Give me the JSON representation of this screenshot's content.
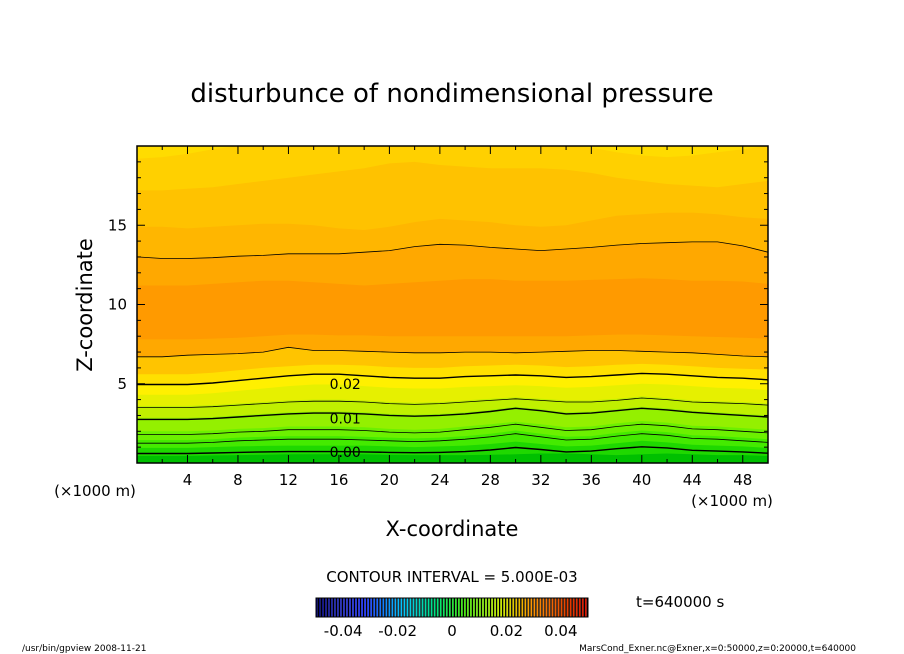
{
  "chart_data": {
    "type": "contour",
    "title": "disturbunce of nondimensional pressure",
    "xlabel": "X-coordinate",
    "ylabel": "Z-coordinate",
    "x_unit": "(×1000 m)",
    "y_unit": "(×1000 m)",
    "xlim": [
      0,
      50
    ],
    "ylim": [
      0,
      20
    ],
    "xticks": [
      4,
      8,
      12,
      16,
      20,
      24,
      28,
      32,
      36,
      40,
      44,
      48
    ],
    "yticks": [
      5,
      10,
      15
    ],
    "contour_interval_label": "CONTOUR INTERVAL = 5.000E-03",
    "contour_labels": [
      {
        "text": "0.02",
        "x": 16.5,
        "z": 5.0
      },
      {
        "text": "0.01",
        "x": 16.5,
        "z": 2.8
      },
      {
        "text": "0.00",
        "x": 16.5,
        "z": 0.7
      }
    ],
    "colorbar": {
      "range": [
        -0.05,
        0.05
      ],
      "ticks": [
        -0.04,
        -0.02,
        0,
        0.02,
        0.04
      ],
      "tick_labels": [
        "-0.04",
        "-0.02",
        "0",
        "0.02",
        "0.04"
      ]
    },
    "time_label": "t=640000  s",
    "bands": [
      {
        "color": "#00c000",
        "lower": [
          0,
          0,
          0,
          0,
          0,
          0,
          0,
          0,
          0,
          0,
          0,
          0,
          0,
          0,
          0,
          0,
          0,
          0,
          0,
          0,
          0,
          0,
          0,
          0,
          0,
          0
        ]
      },
      {
        "color": "#1fd800",
        "lower": [
          0.45,
          0.45,
          0.45,
          0.48,
          0.5,
          0.52,
          0.55,
          0.55,
          0.55,
          0.55,
          0.52,
          0.5,
          0.5,
          0.5,
          0.52,
          0.55,
          0.6,
          0.6,
          0.55,
          0.5,
          0.55,
          0.6,
          0.55,
          0.5,
          0.5,
          0.45
        ]
      },
      {
        "color": "#44ea00",
        "lower": [
          0.95,
          0.95,
          0.95,
          1.0,
          1.05,
          1.08,
          1.1,
          1.1,
          1.1,
          1.1,
          1.05,
          1.0,
          1.05,
          1.1,
          1.2,
          1.35,
          1.2,
          1.05,
          1.1,
          1.25,
          1.4,
          1.3,
          1.15,
          1.1,
          1.05,
          0.95
        ]
      },
      {
        "color": "#6cf000",
        "lower": [
          1.45,
          1.45,
          1.45,
          1.5,
          1.6,
          1.65,
          1.7,
          1.7,
          1.7,
          1.65,
          1.6,
          1.55,
          1.6,
          1.7,
          1.85,
          2.05,
          1.85,
          1.65,
          1.7,
          1.9,
          2.05,
          1.95,
          1.75,
          1.7,
          1.6,
          1.5
        ]
      },
      {
        "color": "#94f000",
        "lower": [
          2.0,
          2.0,
          2.0,
          2.05,
          2.15,
          2.2,
          2.3,
          2.3,
          2.3,
          2.25,
          2.15,
          2.1,
          2.15,
          2.3,
          2.45,
          2.6,
          2.45,
          2.25,
          2.3,
          2.5,
          2.65,
          2.55,
          2.35,
          2.3,
          2.2,
          2.1
        ]
      },
      {
        "color": "#c0f000",
        "lower": [
          2.85,
          2.85,
          2.85,
          2.9,
          3.0,
          3.1,
          3.2,
          3.25,
          3.25,
          3.2,
          3.1,
          3.05,
          3.1,
          3.2,
          3.35,
          3.55,
          3.4,
          3.2,
          3.25,
          3.4,
          3.55,
          3.45,
          3.3,
          3.2,
          3.1,
          3.0
        ]
      },
      {
        "color": "#e6f000",
        "lower": [
          3.6,
          3.6,
          3.6,
          3.65,
          3.75,
          3.85,
          3.95,
          4.0,
          4.0,
          3.95,
          3.85,
          3.8,
          3.85,
          3.95,
          4.05,
          4.15,
          4.05,
          3.95,
          3.95,
          4.05,
          4.2,
          4.1,
          3.95,
          3.9,
          3.85,
          3.75
        ]
      },
      {
        "color": "#fff000",
        "lower": [
          4.3,
          4.3,
          4.3,
          4.4,
          4.55,
          4.7,
          4.85,
          4.95,
          4.95,
          4.85,
          4.75,
          4.7,
          4.7,
          4.8,
          4.85,
          4.9,
          4.85,
          4.75,
          4.8,
          4.9,
          5.0,
          4.95,
          4.85,
          4.75,
          4.7,
          4.6
        ]
      },
      {
        "color": "#ffe000",
        "lower": [
          4.95,
          4.95,
          4.95,
          5.05,
          5.2,
          5.35,
          5.5,
          5.6,
          5.6,
          5.5,
          5.4,
          5.35,
          5.35,
          5.45,
          5.5,
          5.55,
          5.5,
          5.4,
          5.45,
          5.55,
          5.65,
          5.6,
          5.5,
          5.4,
          5.35,
          5.25
        ]
      },
      {
        "color": "#ffc400",
        "lower": [
          5.6,
          5.6,
          5.6,
          5.7,
          5.85,
          6.0,
          6.1,
          6.2,
          6.2,
          6.15,
          6.05,
          6.0,
          6.0,
          6.1,
          6.15,
          6.2,
          6.15,
          6.05,
          6.1,
          6.2,
          6.25,
          6.2,
          6.1,
          6.0,
          5.95,
          5.9
        ]
      },
      {
        "color": "#ffa800",
        "lower": [
          6.7,
          6.7,
          6.8,
          6.85,
          6.9,
          7.0,
          7.3,
          7.1,
          7.1,
          7.05,
          7.0,
          6.95,
          6.95,
          7.0,
          7.0,
          6.95,
          7.0,
          7.05,
          7.1,
          7.1,
          7.05,
          7.0,
          6.95,
          6.85,
          6.75,
          6.7
        ]
      },
      {
        "color": "#ff9a00",
        "lower": [
          7.8,
          7.8,
          7.8,
          7.85,
          7.9,
          8.0,
          8.1,
          8.1,
          8.05,
          8.05,
          8.0,
          8.0,
          8.0,
          8.0,
          8.0,
          8.0,
          8.0,
          8.0,
          8.05,
          8.1,
          8.1,
          8.05,
          8.0,
          7.95,
          7.9,
          7.85
        ]
      },
      {
        "color": "#ffa800",
        "lower": [
          11.2,
          11.2,
          11.2,
          11.3,
          11.4,
          11.5,
          11.5,
          11.4,
          11.3,
          11.2,
          11.3,
          11.4,
          11.5,
          11.6,
          11.6,
          11.5,
          11.5,
          11.5,
          11.55,
          11.6,
          11.65,
          11.6,
          11.5,
          11.5,
          11.45,
          11.3
        ]
      },
      {
        "color": "#ffb600",
        "lower": [
          13.0,
          12.9,
          12.9,
          12.95,
          13.05,
          13.1,
          13.2,
          13.2,
          13.2,
          13.3,
          13.4,
          13.65,
          13.8,
          13.75,
          13.6,
          13.5,
          13.4,
          13.5,
          13.6,
          13.75,
          13.85,
          13.9,
          13.95,
          13.95,
          13.7,
          13.3
        ]
      },
      {
        "color": "#ffc200",
        "lower": [
          14.9,
          14.9,
          14.8,
          14.9,
          15.0,
          15.1,
          15.1,
          15.0,
          14.8,
          14.7,
          14.9,
          15.2,
          15.4,
          15.3,
          15.2,
          15.0,
          14.9,
          15.0,
          15.3,
          15.6,
          15.7,
          15.8,
          15.8,
          15.7,
          15.5,
          15.4
        ]
      },
      {
        "color": "#ffd000",
        "lower": [
          17.2,
          17.2,
          17.3,
          17.4,
          17.6,
          17.8,
          18.0,
          18.2,
          18.4,
          18.6,
          18.9,
          19.0,
          18.8,
          18.7,
          18.6,
          18.6,
          18.6,
          18.5,
          18.3,
          18.0,
          17.8,
          17.6,
          17.5,
          17.4,
          17.6,
          17.8
        ]
      },
      {
        "color": "#ffdc00",
        "lower": [
          19.2,
          19.3,
          19.5,
          19.8,
          20,
          20,
          20,
          20,
          20,
          20,
          20,
          20,
          20,
          20,
          20,
          20,
          20,
          20,
          19.9,
          19.6,
          19.4,
          19.3,
          19.4,
          19.6,
          19.8,
          20
        ]
      }
    ],
    "contours": [
      {
        "width": 1.4,
        "z": [
          0.6,
          0.6,
          0.6,
          0.63,
          0.67,
          0.7,
          0.72,
          0.72,
          0.72,
          0.7,
          0.67,
          0.65,
          0.67,
          0.72,
          0.82,
          0.98,
          0.85,
          0.7,
          0.75,
          0.9,
          1.02,
          0.95,
          0.8,
          0.75,
          0.7,
          0.62
        ]
      },
      {
        "width": 0.8,
        "z": [
          1.25,
          1.25,
          1.25,
          1.3,
          1.4,
          1.45,
          1.5,
          1.5,
          1.5,
          1.45,
          1.4,
          1.35,
          1.4,
          1.5,
          1.65,
          1.85,
          1.65,
          1.45,
          1.5,
          1.7,
          1.85,
          1.75,
          1.55,
          1.5,
          1.4,
          1.3
        ]
      },
      {
        "width": 0.8,
        "z": [
          1.8,
          1.8,
          1.8,
          1.85,
          1.95,
          2.0,
          2.1,
          2.1,
          2.1,
          2.05,
          1.95,
          1.9,
          1.95,
          2.1,
          2.25,
          2.45,
          2.25,
          2.05,
          2.1,
          2.3,
          2.45,
          2.35,
          2.15,
          2.1,
          2.0,
          1.9
        ]
      },
      {
        "width": 1.4,
        "z": [
          2.75,
          2.75,
          2.75,
          2.8,
          2.9,
          3.0,
          3.1,
          3.15,
          3.15,
          3.1,
          3.0,
          2.95,
          3.0,
          3.1,
          3.25,
          3.45,
          3.3,
          3.1,
          3.15,
          3.3,
          3.45,
          3.35,
          3.2,
          3.1,
          3.0,
          2.9
        ]
      },
      {
        "width": 0.8,
        "z": [
          3.5,
          3.5,
          3.5,
          3.55,
          3.65,
          3.75,
          3.85,
          3.9,
          3.9,
          3.85,
          3.75,
          3.7,
          3.75,
          3.85,
          3.95,
          4.05,
          3.95,
          3.85,
          3.85,
          3.95,
          4.1,
          4.0,
          3.85,
          3.8,
          3.75,
          3.65
        ]
      },
      {
        "width": 1.4,
        "z": [
          4.95,
          4.95,
          4.95,
          5.05,
          5.2,
          5.35,
          5.5,
          5.6,
          5.6,
          5.5,
          5.4,
          5.35,
          5.35,
          5.45,
          5.5,
          5.55,
          5.5,
          5.4,
          5.45,
          5.55,
          5.65,
          5.6,
          5.5,
          5.4,
          5.35,
          5.25
        ]
      },
      {
        "width": 0.8,
        "z": [
          6.7,
          6.7,
          6.8,
          6.85,
          6.9,
          7.0,
          7.3,
          7.1,
          7.1,
          7.05,
          7.0,
          6.95,
          6.95,
          7.0,
          7.0,
          6.95,
          7.0,
          7.05,
          7.1,
          7.1,
          7.05,
          7.0,
          6.95,
          6.85,
          6.75,
          6.7
        ]
      },
      {
        "width": 0.8,
        "z": [
          13.0,
          12.9,
          12.9,
          12.95,
          13.05,
          13.1,
          13.2,
          13.2,
          13.2,
          13.3,
          13.4,
          13.65,
          13.8,
          13.75,
          13.6,
          13.5,
          13.4,
          13.5,
          13.6,
          13.75,
          13.85,
          13.9,
          13.95,
          13.95,
          13.7,
          13.3
        ]
      }
    ]
  },
  "footer": {
    "left": "/usr/bin/gpview   2008-11-21",
    "right": "MarsCond_Exner.nc@Exner,x=0:50000,z=0:20000,t=640000"
  },
  "colors": {
    "frame": "#000000",
    "background": "#ffffff"
  }
}
